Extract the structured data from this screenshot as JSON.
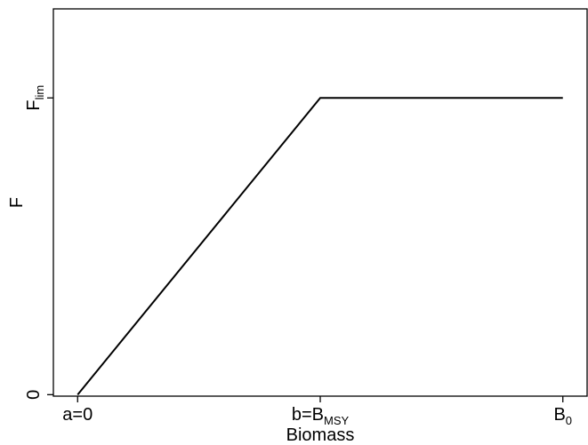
{
  "chart_data": {
    "type": "line",
    "title": "",
    "xlabel": "Biomass",
    "ylabel": "F",
    "x_ticks": [
      {
        "value": 0,
        "label": "a=0",
        "sub": ""
      },
      {
        "value": 0.5,
        "label": "b=B",
        "sub": "MSY"
      },
      {
        "value": 1,
        "label": "B",
        "sub": "0"
      }
    ],
    "y_ticks": [
      {
        "value": 0,
        "label": "0",
        "sub": ""
      },
      {
        "value": 1,
        "label": "F",
        "sub": "lim"
      }
    ],
    "xlim": [
      -0.05,
      1.05
    ],
    "ylim": [
      -0.005,
      1.3
    ],
    "grid": false,
    "series": [
      {
        "name": "",
        "x": [
          0,
          0.5,
          1
        ],
        "y": [
          0,
          1,
          1
        ]
      }
    ],
    "line_color": "#000000"
  }
}
